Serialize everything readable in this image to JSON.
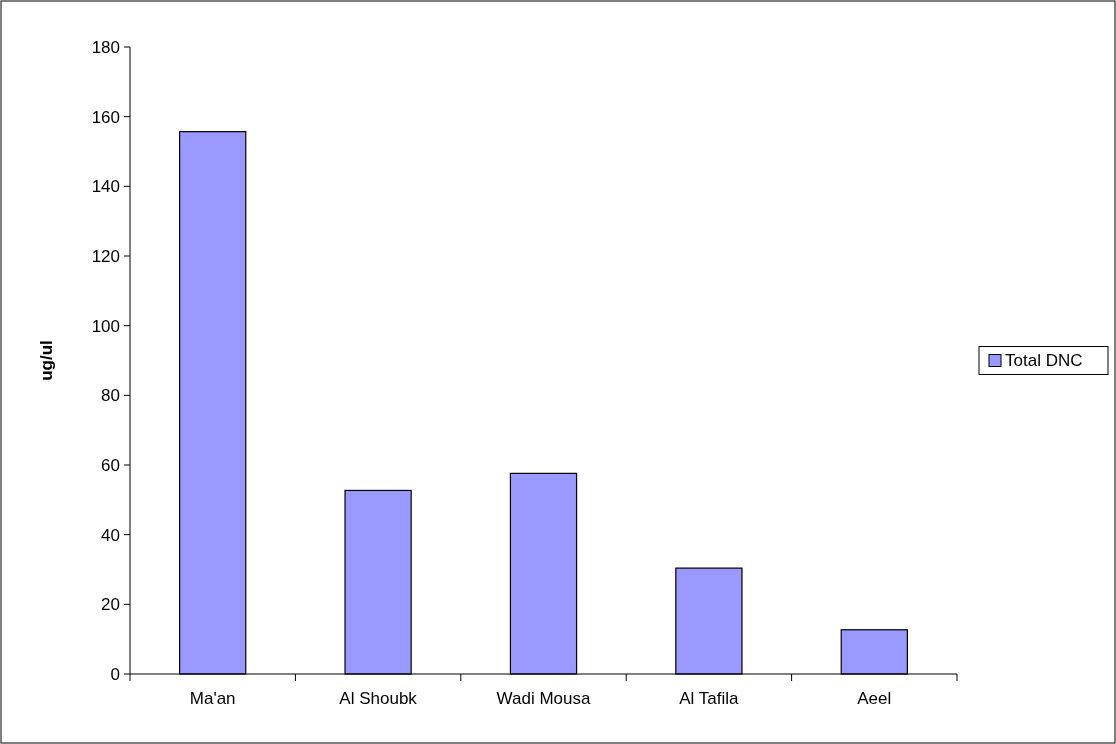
{
  "chart_data": {
    "type": "bar",
    "ylabel": "ug/ul",
    "categories": [
      "Ma'an",
      "Al Shoubk",
      "Wadi Mousa",
      "Al Tafila",
      "Aeel"
    ],
    "series": [
      {
        "name": "Total DNC",
        "color": "#9999ff",
        "values": [
          155.7,
          52.7,
          57.6,
          30.4,
          12.7
        ]
      }
    ],
    "ylim": [
      0,
      180
    ],
    "yticks": [
      0,
      20,
      40,
      60,
      80,
      100,
      120,
      140,
      160,
      180
    ],
    "legend": "right",
    "grid": false
  }
}
